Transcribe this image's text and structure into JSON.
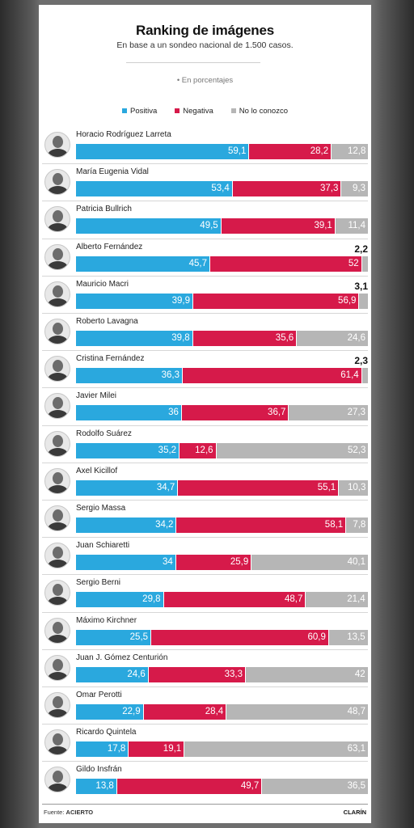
{
  "header": {
    "title": "Ranking de imágenes",
    "subtitle": "En base a un sondeo nacional de 1.500 casos.",
    "unit_note": "• En porcentajes"
  },
  "colors": {
    "positive": "#2aa8de",
    "negative": "#d61a4a",
    "unknown": "#b6b6b6"
  },
  "footer": {
    "source_prefix": "Fuente:",
    "source_name": "ACIERTO",
    "brand": "CLARÍN"
  },
  "chart_data": {
    "type": "bar",
    "stacked": true,
    "orientation": "horizontal",
    "legend": [
      "Positiva",
      "Negativa",
      "No lo conozco"
    ],
    "legend_position": "top",
    "categories": [
      "Horacio Rodríguez Larreta",
      "María Eugenia Vidal",
      "Patricia Bullrich",
      "Alberto Fernández",
      "Mauricio Macri",
      "Roberto Lavagna",
      "Cristina Fernández",
      "Javier Milei",
      "Rodolfo Suárez",
      "Axel Kicillof",
      "Sergio Massa",
      "Juan Schiaretti",
      "Sergio Berni",
      "Máximo Kirchner",
      "Juan J. Gómez Centurión",
      "Omar Perotti",
      "Ricardo Quintela",
      "Gildo Insfrán"
    ],
    "series": [
      {
        "name": "Positiva",
        "values": [
          59.1,
          53.4,
          49.5,
          45.7,
          39.9,
          39.8,
          36.3,
          36,
          35.2,
          34.7,
          34.2,
          34,
          29.8,
          25.5,
          24.6,
          22.9,
          17.8,
          13.8
        ],
        "labels": [
          "59,1",
          "53,4",
          "49,5",
          "45,7",
          "39,9",
          "39,8",
          "36,3",
          "36",
          "35,2",
          "34,7",
          "34,2",
          "34",
          "29,8",
          "25,5",
          "24,6",
          "22,9",
          "17,8",
          "13,8"
        ]
      },
      {
        "name": "Negativa",
        "values": [
          28.2,
          37.3,
          39.1,
          52,
          56.9,
          35.6,
          61.4,
          36.7,
          12.6,
          55.1,
          58.1,
          25.9,
          48.7,
          60.9,
          33.3,
          28.4,
          19.1,
          49.7
        ],
        "labels": [
          "28,2",
          "37,3",
          "39,1",
          "52",
          "56,9",
          "35,6",
          "61,4",
          "36,7",
          "12,6",
          "55,1",
          "58,1",
          "25,9",
          "48,7",
          "60,9",
          "33,3",
          "28,4",
          "19,1",
          "49,7"
        ]
      },
      {
        "name": "No lo conozco",
        "values": [
          12.8,
          9.3,
          11.4,
          2.2,
          3.1,
          24.6,
          2.3,
          27.3,
          52.3,
          10.3,
          7.8,
          40.1,
          21.4,
          13.5,
          42,
          48.7,
          63.1,
          36.5
        ],
        "labels": [
          "12,8",
          "9,3",
          "11,4",
          "2,2",
          "3,1",
          "24,6",
          "2,3",
          "27,3",
          "52,3",
          "10,3",
          "7,8",
          "40,1",
          "21,4",
          "13,5",
          "42",
          "48,7",
          "63,1",
          "36,5"
        ]
      }
    ],
    "xlim": [
      0,
      100
    ],
    "grid": false
  }
}
